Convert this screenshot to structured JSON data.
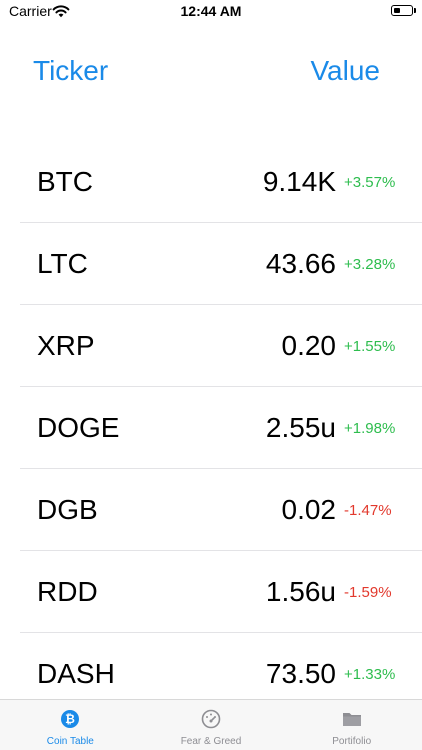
{
  "status_bar": {
    "carrier": "Carrier",
    "time": "12:44 AM"
  },
  "header": {
    "ticker_label": "Ticker",
    "value_label": "Value"
  },
  "coins": [
    {
      "ticker": "BTC",
      "value": "9.14K",
      "change": "+3.57%",
      "direction": "up"
    },
    {
      "ticker": "LTC",
      "value": "43.66",
      "change": "+3.28%",
      "direction": "up"
    },
    {
      "ticker": "XRP",
      "value": "0.20",
      "change": "+1.55%",
      "direction": "up"
    },
    {
      "ticker": "DOGE",
      "value": "2.55u",
      "change": "+1.98%",
      "direction": "up"
    },
    {
      "ticker": "DGB",
      "value": "0.02",
      "change": "-1.47%",
      "direction": "down"
    },
    {
      "ticker": "RDD",
      "value": "1.56u",
      "change": "-1.59%",
      "direction": "down"
    },
    {
      "ticker": "DASH",
      "value": "73.50",
      "change": "+1.33%",
      "direction": "up"
    }
  ],
  "tabs": [
    {
      "label": "Coin Table",
      "icon": "bitcoin-icon",
      "active": true
    },
    {
      "label": "Fear & Greed",
      "icon": "gauge-icon",
      "active": false
    },
    {
      "label": "Portifolio",
      "icon": "folder-icon",
      "active": false
    }
  ],
  "colors": {
    "accent": "#1a8ae8",
    "positive": "#2ebd4e",
    "negative": "#e2392d",
    "inactive": "#8e8e93"
  }
}
